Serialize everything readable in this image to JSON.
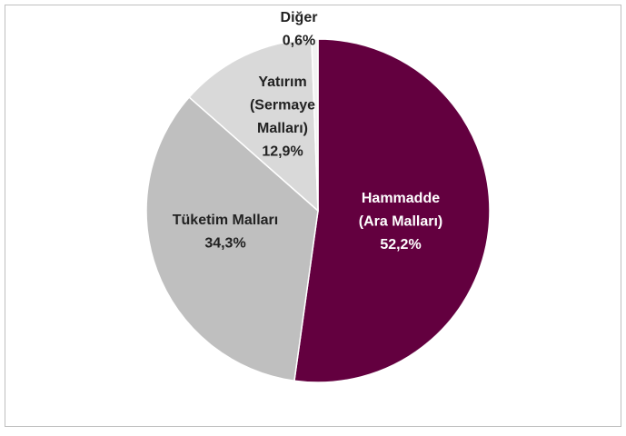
{
  "chart_data": {
    "type": "pie",
    "categories": [
      [
        "Hammadde",
        "(Ara Malları)"
      ],
      [
        "Tüketim Malları"
      ],
      [
        "Yatırım",
        "(Sermaye",
        "Malları)"
      ],
      [
        "Diğer"
      ]
    ],
    "values": [
      52.2,
      34.3,
      12.9,
      0.6
    ],
    "value_labels": [
      "52,2%",
      "34,3%",
      "12,9%",
      "0,6%"
    ],
    "colors": [
      "#63003f",
      "#bfbfbf",
      "#d9d9d9",
      "#f2f2f2"
    ]
  }
}
